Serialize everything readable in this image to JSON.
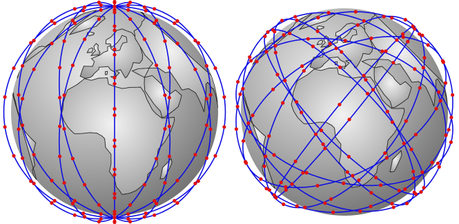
{
  "figure": {
    "panels": [
      {
        "id": "polar-constellation",
        "constellation_type": "polar",
        "orbital_planes": 6,
        "inclination_deg": 90,
        "satellites_per_plane": 22
      },
      {
        "id": "inclined-constellation",
        "constellation_type": "inclined",
        "orbital_planes": 8,
        "inclination_deg": 53,
        "satellites_per_plane": 18
      }
    ],
    "colors": {
      "orbit": "#1010e0",
      "satellite": "#e01010",
      "ocean_light": "#e8e8e8",
      "ocean_dark": "#6e6e6e",
      "land": "#d4d4d4",
      "coastline": "#222222"
    }
  }
}
